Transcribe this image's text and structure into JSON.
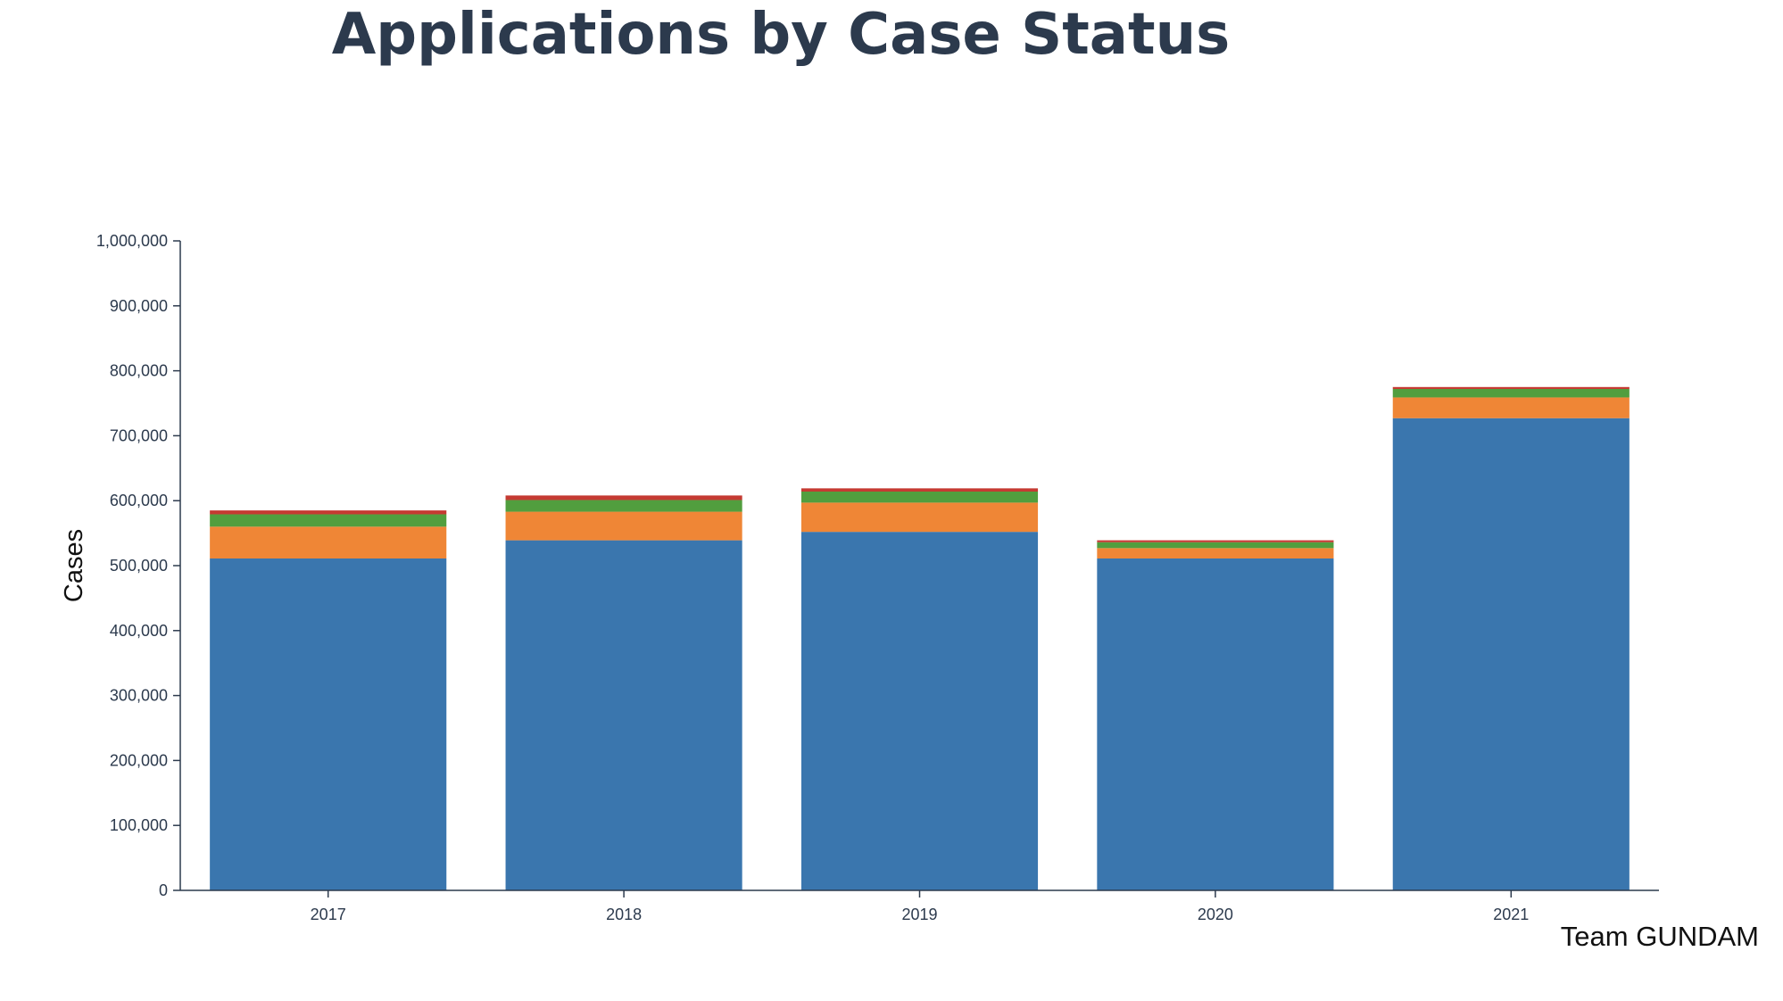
{
  "chart_data": {
    "type": "bar",
    "stacked": true,
    "title": "Applications by Case Status",
    "xlabel": "",
    "ylabel": "Cases",
    "ylim": [
      0,
      1000000
    ],
    "yticks": [
      "0",
      "100,000",
      "200,000",
      "300,000",
      "400,000",
      "500,000",
      "600,000",
      "700,000",
      "800,000",
      "900,000",
      "1,000,000"
    ],
    "yticks_values": [
      0,
      100000,
      200000,
      300000,
      400000,
      500000,
      600000,
      700000,
      800000,
      900000,
      1000000
    ],
    "categories": [
      "2017",
      "2018",
      "2019",
      "2020",
      "2021"
    ],
    "grid": false,
    "legend": "none",
    "series": [
      {
        "color": "#3a76ae",
        "values": [
          511000,
          539000,
          552000,
          511000,
          727000
        ]
      },
      {
        "color": "#ef8636",
        "values": [
          49000,
          44000,
          45000,
          16000,
          32000
        ]
      },
      {
        "color": "#519e3e",
        "values": [
          19000,
          18000,
          17000,
          9000,
          13000
        ]
      },
      {
        "color": "#c53a32",
        "values": [
          6000,
          7000,
          5000,
          3000,
          3000
        ]
      }
    ]
  },
  "credit": "Team GUNDAM"
}
